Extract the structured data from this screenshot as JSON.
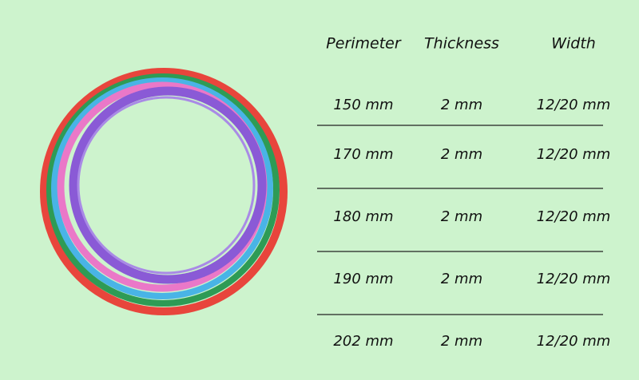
{
  "table": {
    "header": [
      "Perimeter",
      "Thickness",
      "Width"
    ],
    "rows": [
      [
        "150 mm",
        "2 mm",
        "12/20 mm"
      ],
      [
        "170 mm",
        "2 mm",
        "12/20 mm"
      ],
      [
        "180 mm",
        "2 mm",
        "12/20 mm"
      ],
      [
        "190 mm",
        "2 mm",
        "12/20 mm"
      ],
      [
        "202 mm",
        "2 mm",
        "12/20 mm"
      ]
    ]
  }
}
